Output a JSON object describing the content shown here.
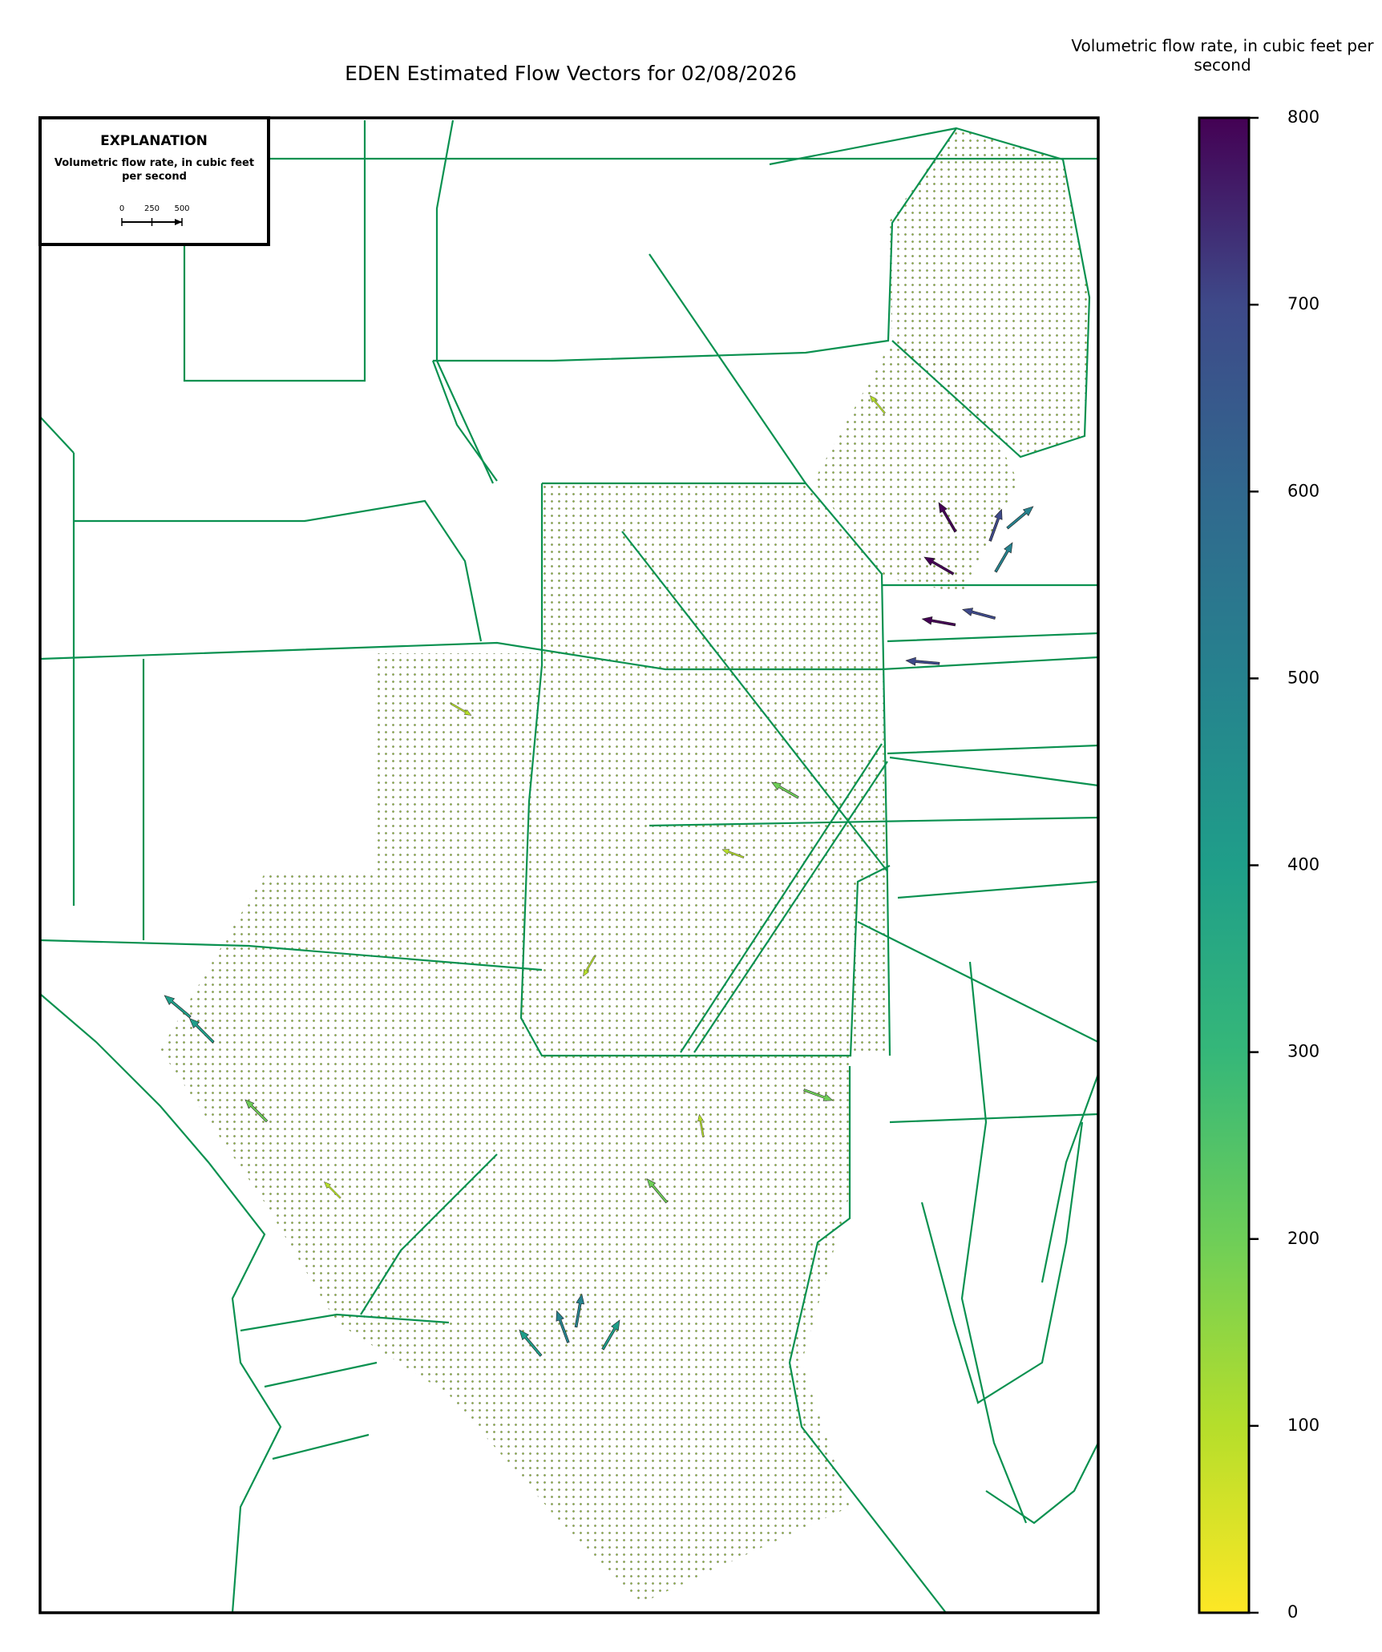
{
  "title": "EDEN Estimated Flow Vectors for 02/08/2026",
  "explanation": {
    "heading": "EXPLANATION",
    "label": "Volumetric flow rate, in cubic feet per second",
    "scale_ticks": [
      0,
      250,
      500
    ]
  },
  "colorbar": {
    "label": "Volumetric flow rate, in cubic feet per second",
    "lim": [
      0,
      800
    ],
    "ticks": [
      0,
      100,
      200,
      300,
      400,
      500,
      600,
      700,
      800
    ]
  }
}
